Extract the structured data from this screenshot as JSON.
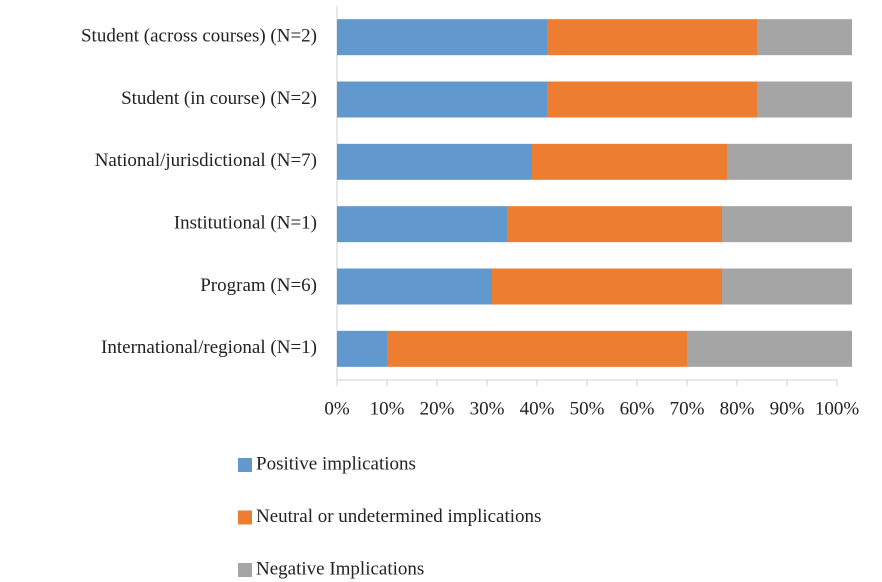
{
  "chart_data": {
    "type": "stacked_barh",
    "categories": [
      "Student (across courses) (N=2)",
      "Student (in course) (N=2)",
      "National/jurisdictional (N=7)",
      "Institutional (N=1)",
      "Program (N=6)",
      "International/regional (N=1)"
    ],
    "series": [
      {
        "name": "Positive implications",
        "color": "#6199cf",
        "values": [
          42,
          42,
          39,
          34,
          31,
          10
        ]
      },
      {
        "name": "Neutral or undetermined implications",
        "color": "#ed7d31",
        "values": [
          42,
          42,
          39,
          43,
          46,
          60
        ]
      },
      {
        "name": "Negative Implications",
        "color": "#a5a5a5",
        "values": [
          19,
          19,
          25,
          26,
          26,
          33
        ]
      }
    ],
    "xlim": [
      0,
      100
    ],
    "xticks": [
      {
        "value": 0,
        "label": "0%"
      },
      {
        "value": 10,
        "label": "10%"
      },
      {
        "value": 20,
        "label": "20%"
      },
      {
        "value": 30,
        "label": "30%"
      },
      {
        "value": 40,
        "label": "40%"
      },
      {
        "value": 50,
        "label": "50%"
      },
      {
        "value": 60,
        "label": "60%"
      },
      {
        "value": 70,
        "label": "70%"
      },
      {
        "value": 80,
        "label": "80%"
      },
      {
        "value": 90,
        "label": "90%"
      },
      {
        "value": 100,
        "label": "100%"
      }
    ],
    "legend": "bottom"
  }
}
